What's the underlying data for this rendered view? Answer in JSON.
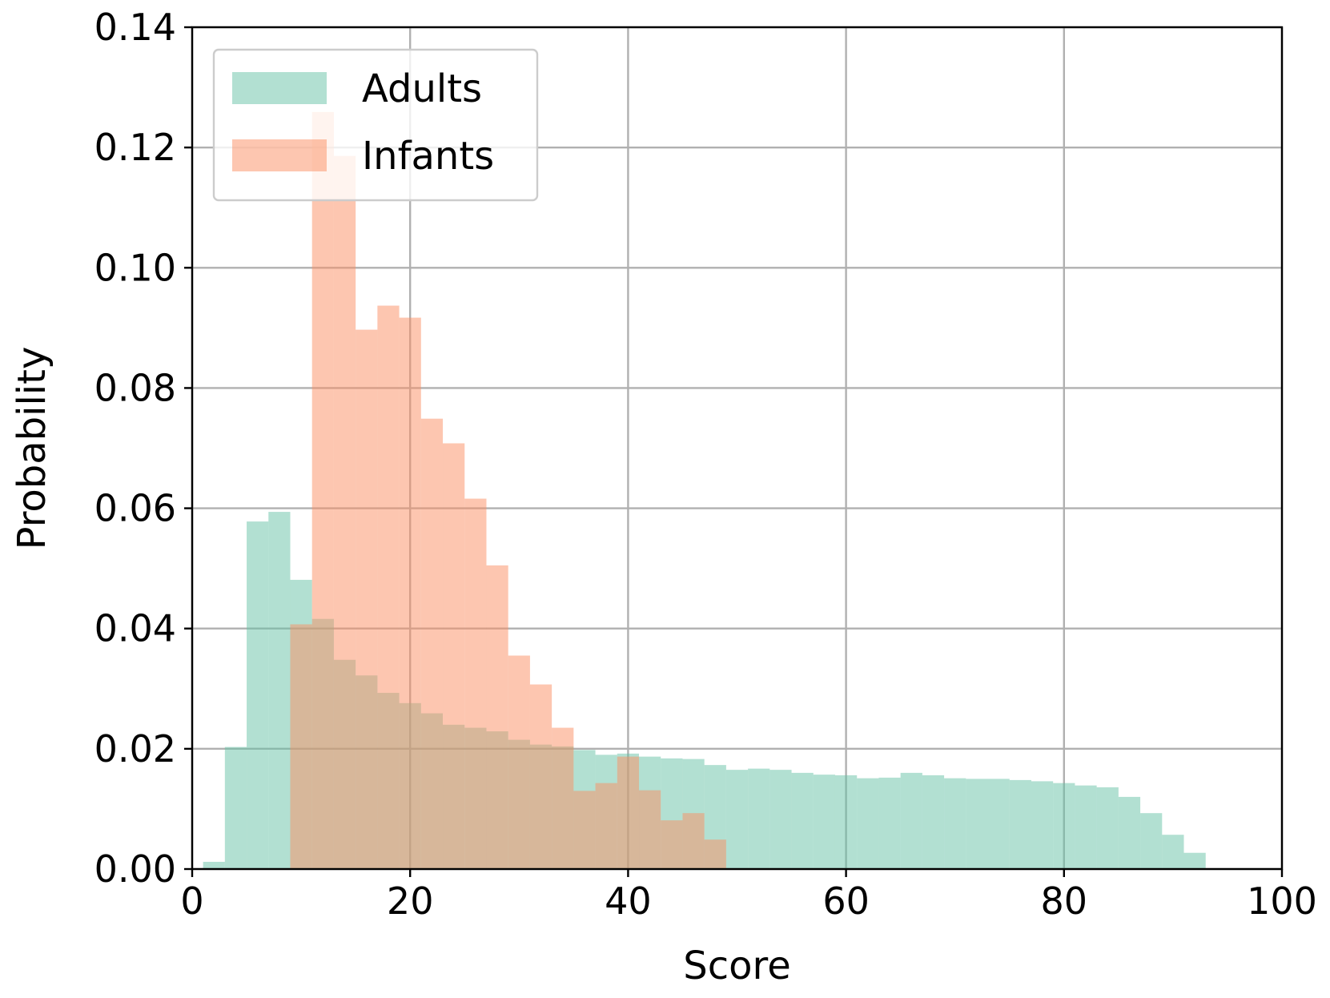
{
  "chart_data": {
    "type": "bar",
    "subtype": "overlapping-histogram",
    "title": "",
    "xlabel": "Score",
    "ylabel": "Probability",
    "xlim": [
      0,
      100
    ],
    "ylim": [
      0,
      0.14
    ],
    "xticks": [
      0,
      20,
      40,
      60,
      80,
      100
    ],
    "xtick_labels": [
      "0",
      "20",
      "40",
      "60",
      "80",
      "100"
    ],
    "yticks": [
      0,
      0.02,
      0.04,
      0.06,
      0.08,
      0.1,
      0.12,
      0.14
    ],
    "ytick_labels": [
      "0.00",
      "0.02",
      "0.04",
      "0.06",
      "0.08",
      "0.10",
      "0.12",
      "0.14"
    ],
    "grid": true,
    "legend_position": "top-left",
    "series": [
      {
        "name": "Adults",
        "color": "#66c2a5",
        "opacity": 0.5,
        "bin_start": 1,
        "bin_width": 2,
        "values": [
          0.0012,
          0.0203,
          0.0578,
          0.0594,
          0.0481,
          0.0416,
          0.0348,
          0.0322,
          0.0293,
          0.0276,
          0.0259,
          0.024,
          0.0235,
          0.0229,
          0.0215,
          0.0207,
          0.0204,
          0.0198,
          0.019,
          0.0192,
          0.0187,
          0.0184,
          0.0183,
          0.0173,
          0.0165,
          0.0167,
          0.0165,
          0.016,
          0.0157,
          0.0156,
          0.0151,
          0.0152,
          0.016,
          0.0156,
          0.0151,
          0.015,
          0.015,
          0.0148,
          0.0146,
          0.0143,
          0.0139,
          0.0136,
          0.012,
          0.0093,
          0.0057,
          0.0027
        ]
      },
      {
        "name": "Infants",
        "color": "#fc8d62",
        "opacity": 0.5,
        "bin_start": 9,
        "bin_width": 2,
        "values": [
          0.0407,
          0.1259,
          0.1186,
          0.0897,
          0.0937,
          0.0917,
          0.0749,
          0.0708,
          0.0616,
          0.0505,
          0.0355,
          0.0307,
          0.0235,
          0.013,
          0.0143,
          0.0187,
          0.0131,
          0.0081,
          0.0093,
          0.0049
        ]
      }
    ]
  }
}
